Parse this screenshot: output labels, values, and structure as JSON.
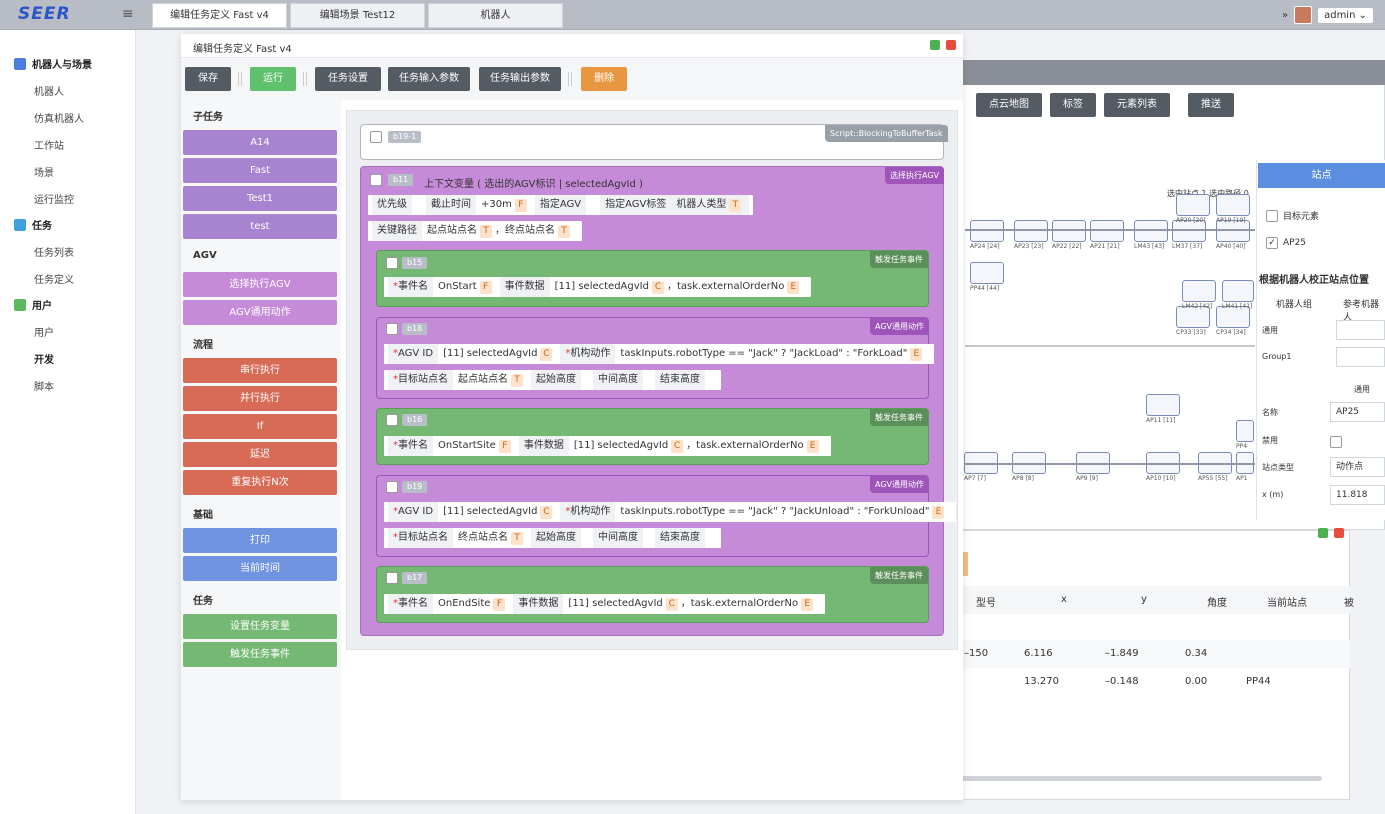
{
  "app": {
    "logo": "SEER",
    "menu_icon": "menu-icon"
  },
  "tabs": [
    {
      "label": "编辑任务定义 Fast v4"
    },
    {
      "label": "编辑场景 Test12"
    },
    {
      "label": "机器人"
    }
  ],
  "header": {
    "collapse": "»",
    "user": "admin"
  },
  "sidebar": {
    "group1": "机器人与场景",
    "items1": [
      "机器人",
      "仿真机器人",
      "工作站",
      "场景",
      "运行监控"
    ],
    "group2": "任务",
    "items2": [
      "任务列表",
      "任务定义"
    ],
    "group3": "用户",
    "items3": [
      "用户"
    ],
    "group4": "开发",
    "items4": [
      "脚本"
    ]
  },
  "bg": {
    "buttons": [
      "点云地图",
      "标签",
      "元素列表",
      "推送"
    ],
    "map_info": "选中站点 1 选中路径 0",
    "nodes": [
      "AP24 [24]",
      "AP23 [23]",
      "AP22 [22]",
      "AP21 [21]",
      "LM43 [43]",
      "LM37 [37]",
      "AP40 [40]",
      "PP44 [44]",
      "CP33 [33]",
      "CP34 [34]",
      "AP11 [11]",
      "AP7 [7]",
      "AP8 [8]",
      "AP9 [9]",
      "AP10 [10]",
      "AP55 [55]",
      "AP20 [20]",
      "AP19 [19]",
      "LM42 [42]",
      "LM41 [41]",
      "PP4",
      "AP1"
    ],
    "panel": {
      "tab": "站点",
      "target": "目标元素",
      "target_checked": "AP25",
      "section": "根据机器人校正站点位置",
      "col1": "机器人组",
      "col2": "参考机器人",
      "row1": "通用",
      "row2": "Group1",
      "general": "通用",
      "f_name": "名称",
      "v_name": "AP25",
      "f_disabled": "禁用",
      "f_type": "站点类型",
      "v_type": "动作点",
      "f_x": "x (m)",
      "v_x": "11.818"
    },
    "table": {
      "headers": [
        "型号",
        "x",
        "y",
        "角度",
        "当前站点",
        "被"
      ],
      "rows": [
        [
          "–150",
          "6.116",
          "–1.849",
          "0.34",
          ""
        ],
        [
          "",
          "13.270",
          "–0.148",
          "0.00",
          "PP44"
        ]
      ]
    }
  },
  "dialog": {
    "title": "编辑任务定义 Fast v4",
    "toolbar": {
      "save": "保存",
      "run": "运行",
      "settings": "任务设置",
      "input": "任务输入参数",
      "output": "任务输出参数",
      "delete": "删除"
    },
    "palette": {
      "h1": "子任务",
      "sub": [
        "A14",
        "Fast",
        "Test1",
        "test"
      ],
      "h2": "AGV",
      "agv": [
        "选择执行AGV",
        "AGV通用动作"
      ],
      "h3": "流程",
      "flow": [
        "串行执行",
        "并行执行",
        "If",
        "延迟",
        "重复执行N次"
      ],
      "h4": "基础",
      "basic": [
        "打印",
        "当前时间"
      ],
      "h5": "任务",
      "task": [
        "设置任务变量",
        "触发任务事件"
      ]
    },
    "blocks": {
      "b191": {
        "id": "b19-1",
        "type": "Script::BlockingToBufferTask"
      },
      "b11": {
        "id": "b11",
        "title": "上下文变量 ( 选出的AGV标识 | selectedAgvId )",
        "type": "选择执行AGV",
        "f1": "优先级",
        "f2": "截止时间",
        "v2": "+30m",
        "f3": "指定AGV",
        "f4": "指定AGV标签",
        "f5": "机器人类型",
        "f6": "关键路径",
        "v6a": "起点站点名",
        "v6b": "终点站点名"
      },
      "b15": {
        "id": "b15",
        "type": "触发任务事件",
        "f1": "事件名",
        "v1": "OnStart",
        "f2": "事件数据",
        "v2a": "[11] selectedAgvId",
        "v2b": "task.externalOrderNo"
      },
      "b18": {
        "id": "b18",
        "type": "AGV通用动作",
        "f1": "AGV ID",
        "v1": "[11] selectedAgvId",
        "f2": "机构动作",
        "v2": "taskInputs.robotType == \"Jack\" ? \"JackLoad\" : \"ForkLoad\"",
        "f3": "目标站点名",
        "v3": "起点站点名",
        "f4": "起始高度",
        "f5": "中间高度",
        "f6": "结束高度"
      },
      "b16": {
        "id": "b16",
        "type": "触发任务事件",
        "f1": "事件名",
        "v1": "OnStartSite",
        "f2": "事件数据",
        "v2a": "[11] selectedAgvId",
        "v2b": "task.externalOrderNo"
      },
      "b19": {
        "id": "b19",
        "type": "AGV通用动作",
        "f1": "AGV ID",
        "v1": "[11] selectedAgvId",
        "f2": "机构动作",
        "v2": "taskInputs.robotType == \"Jack\" ? \"JackUnload\" : \"ForkUnload\"",
        "f3": "目标站点名",
        "v3": "终点站点名",
        "f4": "起始高度",
        "f5": "中间高度",
        "f6": "结束高度"
      },
      "b17": {
        "id": "b17",
        "type": "触发任务事件",
        "f1": "事件名",
        "v1": "OnEndSite",
        "f2": "事件数据",
        "v2a": "[11] selectedAgvId",
        "v2b": "task.externalOrderNo"
      }
    },
    "badges": {
      "F": "F",
      "T": "T",
      "C": "C",
      "E": "E"
    },
    "comma": "，"
  },
  "colors": {
    "purple": "#a883d0",
    "pink": "#c58bd8",
    "green": "#6fae6f",
    "red": "#d76b56",
    "blue": "#6f93e0",
    "task_green": "#74b874"
  }
}
